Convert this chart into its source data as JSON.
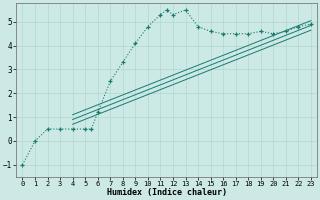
{
  "xlabel": "Humidex (Indice chaleur)",
  "bg_color": "#cce9e5",
  "line_color": "#1a7a6e",
  "grid_color": "#b0d8d4",
  "xlim": [
    -0.5,
    23.5
  ],
  "ylim": [
    -1.5,
    5.8
  ],
  "yticks": [
    -1,
    0,
    1,
    2,
    3,
    4,
    5
  ],
  "xticks": [
    0,
    1,
    2,
    3,
    4,
    5,
    6,
    7,
    8,
    9,
    10,
    11,
    12,
    13,
    14,
    15,
    16,
    17,
    18,
    19,
    20,
    21,
    22,
    23
  ],
  "curve_x": [
    0,
    1,
    2,
    3,
    4,
    5,
    5.5,
    6,
    7,
    8,
    9,
    10,
    11,
    11.5,
    12,
    13,
    14,
    15,
    16,
    17,
    18,
    19,
    20,
    21,
    22,
    23
  ],
  "curve_y": [
    -1,
    0,
    0.5,
    0.5,
    0.5,
    0.5,
    0.5,
    1.2,
    2.5,
    3.3,
    4.1,
    4.8,
    5.3,
    5.5,
    5.3,
    5.5,
    4.8,
    4.6,
    4.5,
    4.5,
    4.5,
    4.6,
    4.5,
    4.6,
    4.8,
    4.9
  ],
  "line1_x": [
    4,
    23
  ],
  "line1_y": [
    0.9,
    4.85
  ],
  "line2_x": [
    4,
    23
  ],
  "line2_y": [
    1.1,
    5.05
  ],
  "line3_x": [
    4,
    23
  ],
  "line3_y": [
    0.7,
    4.65
  ]
}
